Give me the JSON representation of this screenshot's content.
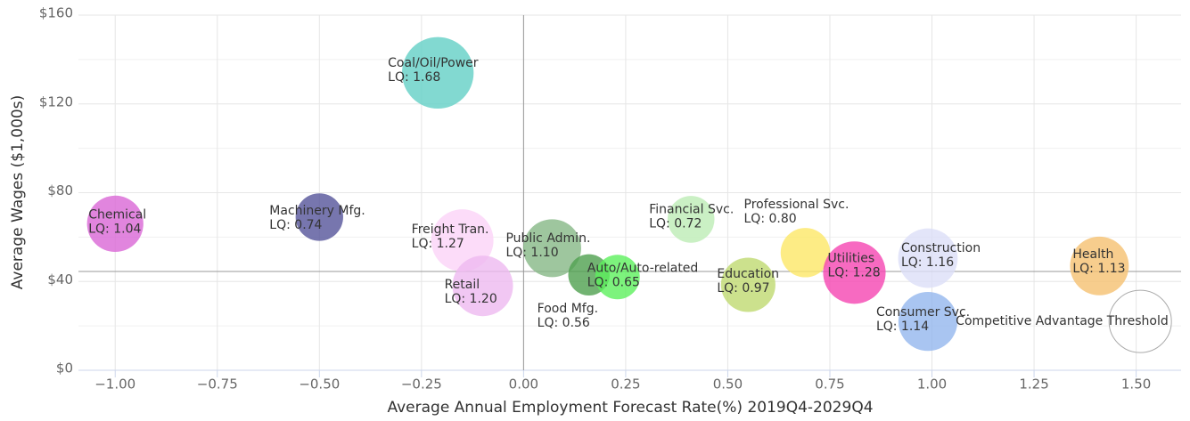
{
  "chart_data": {
    "type": "bubble",
    "xlabel": "Average Annual Employment Forecast Rate(%) 2019Q4-2029Q4",
    "ylabel": "Average Wages ($1,000s)",
    "categories": [
      "Chemical",
      "Machinery Mfg.",
      "Coal/Oil/Power",
      "Freight Tran.",
      "Retail",
      "Public Admin.",
      "Food Mfg.",
      "Auto/Auto-related",
      "Financial Svc.",
      "Education",
      "Professional Svc.",
      "Utilities",
      "Construction",
      "Consumer Svc.",
      "Health"
    ],
    "x": [
      -1.0,
      -0.5,
      -0.21,
      -0.15,
      -0.1,
      0.07,
      0.16,
      0.23,
      0.41,
      0.55,
      0.69,
      0.81,
      0.99,
      0.99,
      1.41
    ],
    "values": [
      66,
      69,
      134,
      58.5,
      38,
      55,
      43,
      42,
      68,
      38.5,
      53,
      44,
      50.5,
      22,
      47
    ],
    "sizes": [
      1.04,
      0.74,
      1.68,
      1.27,
      1.2,
      1.1,
      0.56,
      0.65,
      0.72,
      0.97,
      0.8,
      1.28,
      1.16,
      1.14,
      1.13
    ],
    "size_labels": [
      "LQ: 1.04",
      "LQ: 0.74",
      "LQ: 1.68",
      "LQ: 1.27",
      "LQ: 1.20",
      "LQ: 1.10",
      "LQ: 0.56",
      "LQ: 0.65",
      "LQ: 0.72",
      "LQ: 0.97",
      "LQ: 0.80",
      "LQ: 1.28",
      "LQ: 1.16",
      "LQ: 1.14",
      "LQ: 1.13"
    ],
    "colors": [
      "#d966d6",
      "#55549a",
      "#63cfc5",
      "#fbd3f7",
      "#eeb9f0",
      "#86b886",
      "#4fa04f",
      "#5cf05c",
      "#bdecb5",
      "#bfda70",
      "#fce766",
      "#f545b2",
      "#dcdff8",
      "#93b6ee",
      "#f5c070"
    ],
    "threshold": {
      "name": "Competitive Advantage Threshold",
      "x": 1.51,
      "y": 22
    },
    "reference_lines": {
      "x": 0,
      "y": 44.5
    },
    "xlim": [
      -1.09,
      1.61
    ],
    "ylim": [
      0,
      160
    ],
    "xticks": [
      {
        "value": -1,
        "label": "−1.00"
      },
      {
        "value": -0.75,
        "label": "−0.75"
      },
      {
        "value": -0.5,
        "label": "−0.50"
      },
      {
        "value": -0.25,
        "label": "−0.25"
      },
      {
        "value": 0,
        "label": "0.00"
      },
      {
        "value": 0.25,
        "label": "0.25"
      },
      {
        "value": 0.5,
        "label": "0.50"
      },
      {
        "value": 0.75,
        "label": "0.75"
      },
      {
        "value": 1,
        "label": "1.00"
      },
      {
        "value": 1.25,
        "label": "1.25"
      },
      {
        "value": 1.5,
        "label": "1.50"
      }
    ],
    "yticks": [
      {
        "value": 0,
        "label": "$0"
      },
      {
        "value": 40,
        "label": "$40"
      },
      {
        "value": 80,
        "label": "$80"
      },
      {
        "value": 120,
        "label": "$120"
      },
      {
        "value": 160,
        "label": "$160"
      }
    ],
    "yminor": [
      20,
      60,
      100,
      140
    ],
    "grid": true
  }
}
